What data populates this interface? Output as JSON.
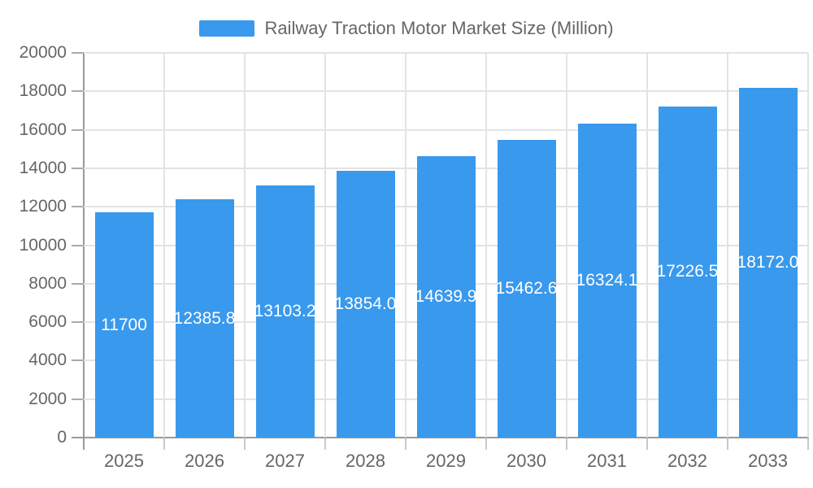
{
  "chart_data": {
    "type": "bar",
    "title": "Railway Traction Motor Market Size (Million)",
    "legend": {
      "position": "top",
      "label": "Railway Traction Motor Market Size (Million)"
    },
    "categories": [
      "2025",
      "2026",
      "2027",
      "2028",
      "2029",
      "2030",
      "2031",
      "2032",
      "2033"
    ],
    "series": [
      {
        "name": "Railway Traction Motor Market Size (Million)",
        "values": [
          11700,
          12385.8,
          13103.2,
          13854.0,
          14639.9,
          15462.6,
          16324.1,
          17226.5,
          18172.0
        ],
        "bar_labels": [
          "11700",
          "12385.8",
          "13103.2",
          "13854.0",
          "14639.9",
          "15462.6",
          "16324.1",
          "17226.5",
          "18172.0"
        ]
      }
    ],
    "xlabel": "",
    "ylabel": "",
    "ylim": [
      0,
      20000
    ],
    "ytick_step": 2000,
    "ytick_labels": [
      "0",
      "2000",
      "4000",
      "6000",
      "8000",
      "10000",
      "12000",
      "14000",
      "16000",
      "18000",
      "20000"
    ],
    "grid": true,
    "value_labels_inside_bars": true,
    "colors": {
      "bar": "#3999EC",
      "bar_label_text": "#FFFFFF",
      "axis_text": "#666666",
      "axis_line": "#999999",
      "gridline": "#E3E3E3",
      "tick": "#C9C9C9",
      "background": "#FFFFFF"
    }
  }
}
